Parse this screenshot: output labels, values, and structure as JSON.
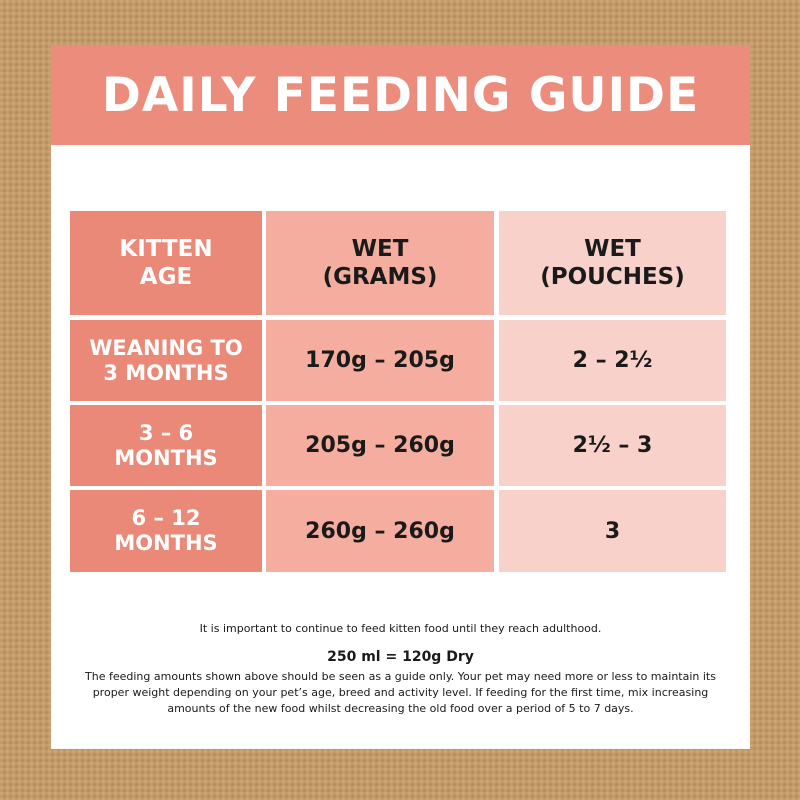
{
  "title": "DAILY FEEDING GUIDE",
  "table": {
    "headers": [
      "KITTEN\nAGE",
      "WET\n(GRAMS)",
      "WET\n(POUCHES)"
    ],
    "rows": [
      {
        "age": "WEANING TO\n3 MONTHS",
        "grams": "170g – 205g",
        "pouches": "2 – 2½"
      },
      {
        "age": "3 – 6\nMONTHS",
        "grams": "205g – 260g",
        "pouches": "2½ – 3"
      },
      {
        "age": "6 – 12\nMONTHS",
        "grams": "260g – 260g",
        "pouches": "3"
      }
    ]
  },
  "footer": {
    "note": "It is important to continue to feed kitten food until they reach adulthood.",
    "conversion": "250 ml = 120g Dry",
    "disclaimer": "The feeding amounts shown above should be seen as a guide only. Your pet may need more or less to maintain its proper weight depending on your pet’s age, breed and activity level. If feeding for the first time, mix increasing amounts of the new food whilst decreasing the old food over a period of 5 to 7 days."
  },
  "colors": {
    "background": "#c39a6a",
    "title_band": "#eb8c7c",
    "row_header": "#ea8977",
    "grams_column": "#f4ad9f",
    "pouches_column": "#f8d2ca"
  }
}
